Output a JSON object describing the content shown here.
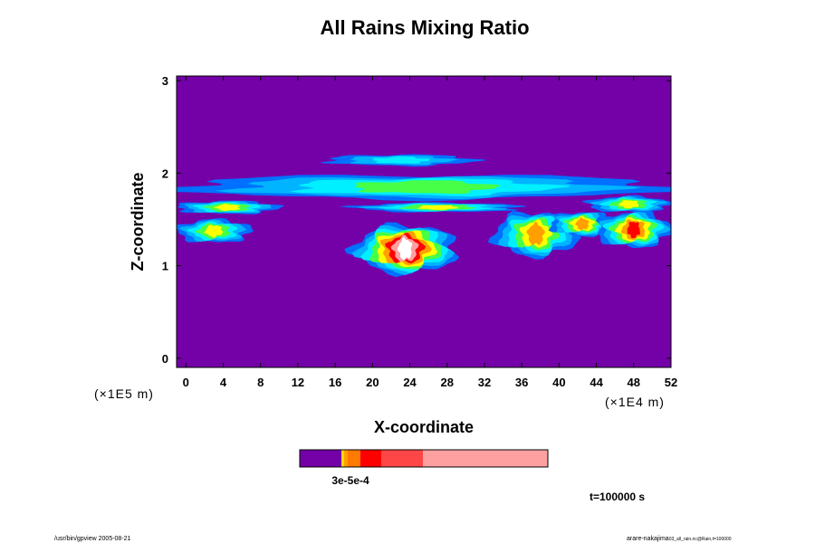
{
  "chart_data": {
    "type": "heatmap",
    "title": "All Rains Mixing Ratio",
    "xlabel": "X-coordinate",
    "ylabel": "Z-coordinate",
    "x_multiplier": "(×1E4 m)",
    "y_multiplier": "(×1E5 m)",
    "xlim": [
      -1,
      52
    ],
    "ylim": [
      -0.1,
      3.05
    ],
    "x_ticks": [
      "0",
      "4",
      "8",
      "12",
      "16",
      "20",
      "24",
      "28",
      "32",
      "36",
      "40",
      "44",
      "48",
      "52"
    ],
    "y_ticks": [
      "0",
      "1",
      "2",
      "3"
    ],
    "background_color": "#7400a8",
    "colorbar": {
      "colors": [
        "#7400a8",
        "#ffd800",
        "#ff9f00",
        "#ff7a00",
        "#ff0000",
        "#ff4646",
        "#ffa0a0"
      ],
      "labels_overlapping": "3e-5e-4"
    },
    "contour_levels": [
      {
        "name": "blue",
        "color": "#0070ff"
      },
      {
        "name": "light-blue",
        "color": "#00b4ff"
      },
      {
        "name": "cyan",
        "color": "#00f0ff"
      },
      {
        "name": "green",
        "color": "#46ff46"
      },
      {
        "name": "yellow",
        "color": "#ffff00"
      },
      {
        "name": "orange",
        "color": "#ff9f00"
      },
      {
        "name": "red",
        "color": "#ff0000"
      },
      {
        "name": "pink",
        "color": "#ffa0a0"
      },
      {
        "name": "white",
        "color": "#ffffff"
      }
    ],
    "regions": [
      {
        "name": "upper-layer-band",
        "x0": -1,
        "x1": 52,
        "z0": 1.72,
        "z1": 1.98,
        "peak": 3
      },
      {
        "name": "upper-cap",
        "x0": 15,
        "x1": 31,
        "z0": 2.08,
        "z1": 2.2,
        "peak": 2
      },
      {
        "name": "left-green-band",
        "x0": -1,
        "x1": 10,
        "z0": 1.56,
        "z1": 1.7,
        "peak": 4
      },
      {
        "name": "left-lower-cell",
        "x0": -1,
        "x1": 7,
        "z0": 1.25,
        "z1": 1.5,
        "peak": 4
      },
      {
        "name": "mid-band",
        "x0": 18,
        "x1": 36,
        "z0": 1.58,
        "z1": 1.68,
        "peak": 4
      },
      {
        "name": "central-storm",
        "x0": 18,
        "x1": 29,
        "z0": 0.92,
        "z1": 1.44,
        "peak": 8
      },
      {
        "name": "right-cell-a",
        "x0": 33,
        "x1": 42,
        "z0": 1.1,
        "z1": 1.58,
        "peak": 5
      },
      {
        "name": "right-cell-b",
        "x0": 39,
        "x1": 46,
        "z0": 1.32,
        "z1": 1.58,
        "peak": 5
      },
      {
        "name": "right-cell-c",
        "x0": 44,
        "x1": 52,
        "z0": 1.2,
        "z1": 1.58,
        "peak": 6
      },
      {
        "name": "right-upper-band",
        "x0": 43,
        "x1": 52,
        "z0": 1.58,
        "z1": 1.75,
        "peak": 4
      }
    ]
  },
  "time_label": "t=100000 s",
  "footer_left": "/usr/bin/gpview 2005-08-21",
  "footer_right_main": "arare-nakajima",
  "footer_right_small": "03_all_rain.nc@Rain,t=100000"
}
